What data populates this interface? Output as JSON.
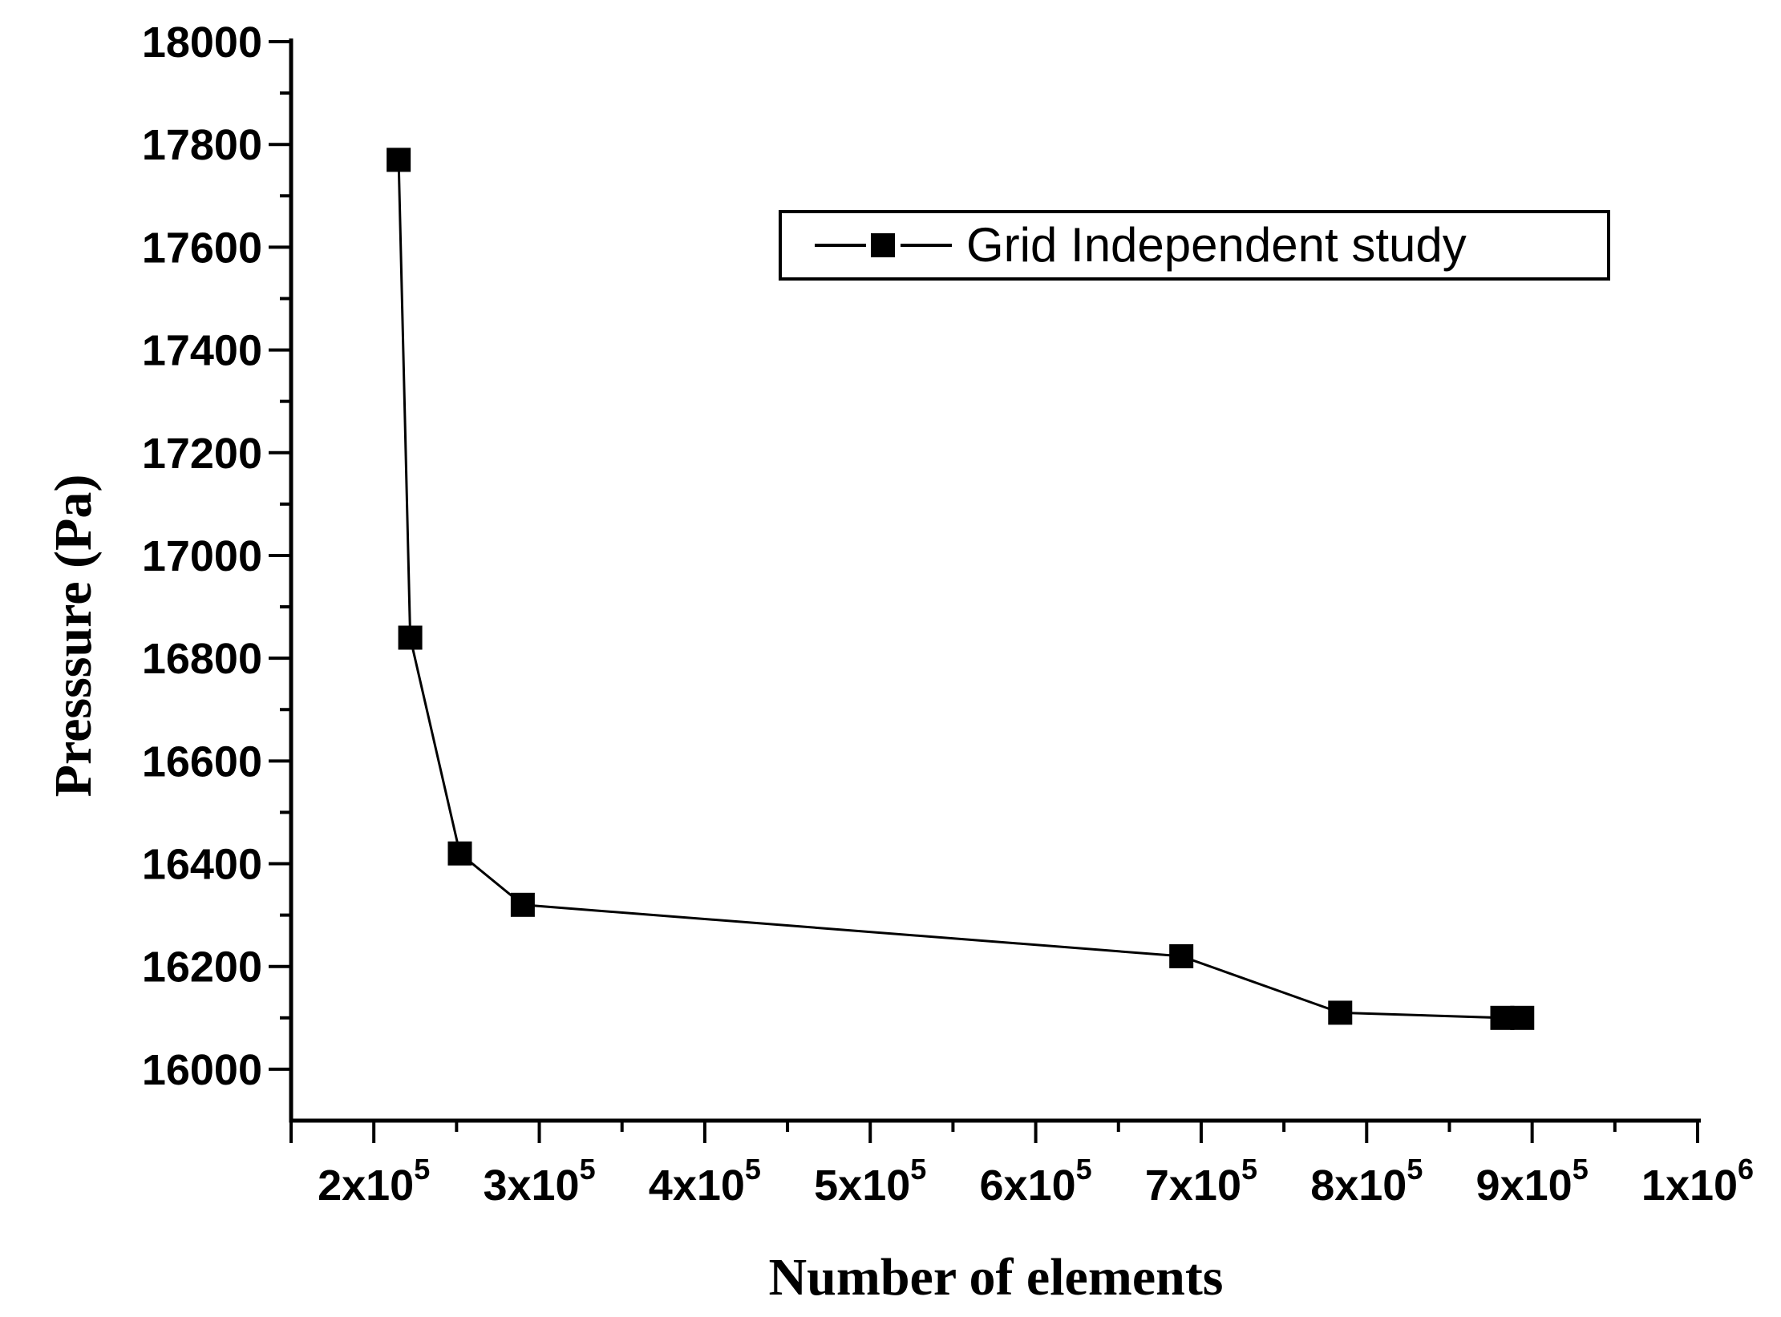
{
  "chart_data": {
    "type": "line",
    "title": "",
    "xlabel": "Number of elements",
    "ylabel": "Presssure (Pa)",
    "grid": false,
    "legend": {
      "label": "Grid Independent study",
      "position": "inside-top-center",
      "marker": "filled-square-on-line"
    },
    "series": [
      {
        "name": "Grid Independent study",
        "color": "#000000",
        "marker": "filled-square",
        "points": [
          [
            215000,
            17770
          ],
          [
            222000,
            16840
          ],
          [
            252000,
            16420
          ],
          [
            290000,
            16320
          ],
          [
            688000,
            16220
          ],
          [
            784000,
            16110
          ],
          [
            882000,
            16100
          ],
          [
            894000,
            16100
          ]
        ]
      }
    ],
    "xlim": [
      150000,
      1000000
    ],
    "ylim": [
      15900,
      18000
    ],
    "xticks": {
      "start_tick": 150000,
      "major": [
        {
          "value": 200000,
          "label": "2x10^5"
        },
        {
          "value": 300000,
          "label": "3x10^5"
        },
        {
          "value": 400000,
          "label": "4x10^5"
        },
        {
          "value": 500000,
          "label": "5x10^5"
        },
        {
          "value": 600000,
          "label": "6x10^5"
        },
        {
          "value": 700000,
          "label": "7x10^5"
        },
        {
          "value": 800000,
          "label": "8x10^5"
        },
        {
          "value": 900000,
          "label": "9x10^5"
        },
        {
          "value": 1000000,
          "label": "1x10^6"
        }
      ],
      "minor": [
        250000,
        350000,
        450000,
        550000,
        650000,
        750000,
        850000,
        950000
      ]
    },
    "yticks": {
      "major": [
        {
          "value": 18000,
          "label": "18000"
        },
        {
          "value": 17800,
          "label": "17800"
        },
        {
          "value": 17600,
          "label": "17600"
        },
        {
          "value": 17400,
          "label": "17400"
        },
        {
          "value": 17200,
          "label": "17200"
        },
        {
          "value": 17000,
          "label": "17000"
        },
        {
          "value": 16800,
          "label": "16800"
        },
        {
          "value": 16600,
          "label": "16600"
        },
        {
          "value": 16400,
          "label": "16400"
        },
        {
          "value": 16200,
          "label": "16200"
        },
        {
          "value": 16000,
          "label": "16000"
        }
      ],
      "minor": [
        16100,
        16300,
        16500,
        16700,
        16900,
        17100,
        17300,
        17500,
        17700,
        17900
      ]
    },
    "colors": {
      "axis": "#000000",
      "text": "#000000",
      "series": "#000000",
      "background": "#ffffff"
    }
  }
}
